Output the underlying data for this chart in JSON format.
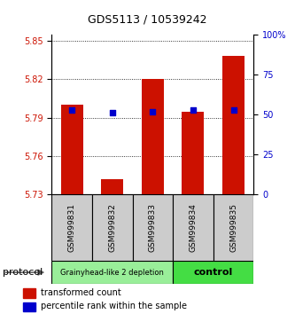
{
  "title": "GDS5113 / 10539242",
  "samples": [
    "GSM999831",
    "GSM999832",
    "GSM999833",
    "GSM999834",
    "GSM999835"
  ],
  "transformed_counts": [
    5.8,
    5.742,
    5.82,
    5.795,
    5.838
  ],
  "percentile_ranks": [
    53,
    51,
    52,
    53,
    53
  ],
  "ylim": [
    5.73,
    5.855
  ],
  "y_ticks": [
    5.73,
    5.76,
    5.79,
    5.82,
    5.85
  ],
  "y2_ticks": [
    0,
    25,
    50,
    75,
    100
  ],
  "y2_ticklabels": [
    "0",
    "25",
    "50",
    "75",
    "100%"
  ],
  "bar_color": "#cc1100",
  "dot_color": "#0000cc",
  "group0_color": "#99ee99",
  "group0_label": "Grainyhead-like 2 depletion",
  "group0_samples": [
    0,
    1,
    2
  ],
  "group1_color": "#44dd44",
  "group1_label": "control",
  "group1_samples": [
    3,
    4
  ],
  "protocol_label": "protocol",
  "legend_red_label": "transformed count",
  "legend_blue_label": "percentile rank within the sample",
  "sample_box_color": "#cccccc",
  "title_fontsize": 9,
  "tick_fontsize": 7,
  "label_fontsize": 7
}
